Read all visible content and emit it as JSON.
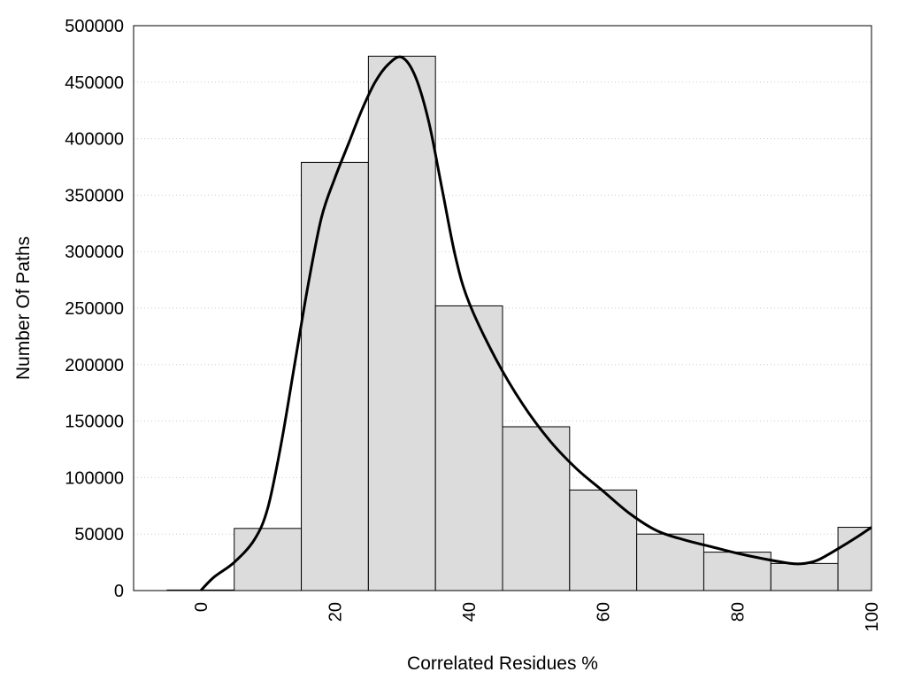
{
  "chart_data": {
    "type": "bar",
    "xlabel": "Correlated Residues %",
    "ylabel": "Number Of Paths",
    "xlim": [
      -10,
      100
    ],
    "ylim": [
      0,
      500000
    ],
    "xticks": [
      0,
      20,
      40,
      60,
      80,
      100
    ],
    "yticks": [
      0,
      50000,
      100000,
      150000,
      200000,
      250000,
      300000,
      350000,
      400000,
      450000,
      500000
    ],
    "grid": "horizontal dotted",
    "bin_width": 10,
    "bins": [
      {
        "center": 0,
        "value": 500
      },
      {
        "center": 10,
        "value": 55000
      },
      {
        "center": 20,
        "value": 379000
      },
      {
        "center": 30,
        "value": 473000
      },
      {
        "center": 40,
        "value": 252000
      },
      {
        "center": 50,
        "value": 145000
      },
      {
        "center": 60,
        "value": 89000
      },
      {
        "center": 70,
        "value": 50000
      },
      {
        "center": 80,
        "value": 34000
      },
      {
        "center": 90,
        "value": 24000
      },
      {
        "center": 100,
        "value": 56000
      }
    ],
    "smooth_curve": [
      [
        0,
        0
      ],
      [
        2,
        12000
      ],
      [
        5,
        25000
      ],
      [
        8,
        45000
      ],
      [
        10,
        73000
      ],
      [
        12,
        130000
      ],
      [
        14,
        200000
      ],
      [
        16,
        270000
      ],
      [
        18,
        330000
      ],
      [
        20,
        365000
      ],
      [
        22,
        395000
      ],
      [
        24,
        425000
      ],
      [
        26,
        450000
      ],
      [
        28,
        466000
      ],
      [
        30,
        472000
      ],
      [
        32,
        455000
      ],
      [
        34,
        415000
      ],
      [
        36,
        355000
      ],
      [
        38,
        295000
      ],
      [
        40,
        255000
      ],
      [
        44,
        205000
      ],
      [
        48,
        165000
      ],
      [
        52,
        133000
      ],
      [
        56,
        108000
      ],
      [
        60,
        88000
      ],
      [
        64,
        68000
      ],
      [
        68,
        53000
      ],
      [
        72,
        45000
      ],
      [
        76,
        39000
      ],
      [
        80,
        33000
      ],
      [
        84,
        28000
      ],
      [
        88,
        24000
      ],
      [
        90,
        24000
      ],
      [
        92,
        27000
      ],
      [
        95,
        37000
      ],
      [
        98,
        48000
      ],
      [
        100,
        56000
      ]
    ]
  }
}
